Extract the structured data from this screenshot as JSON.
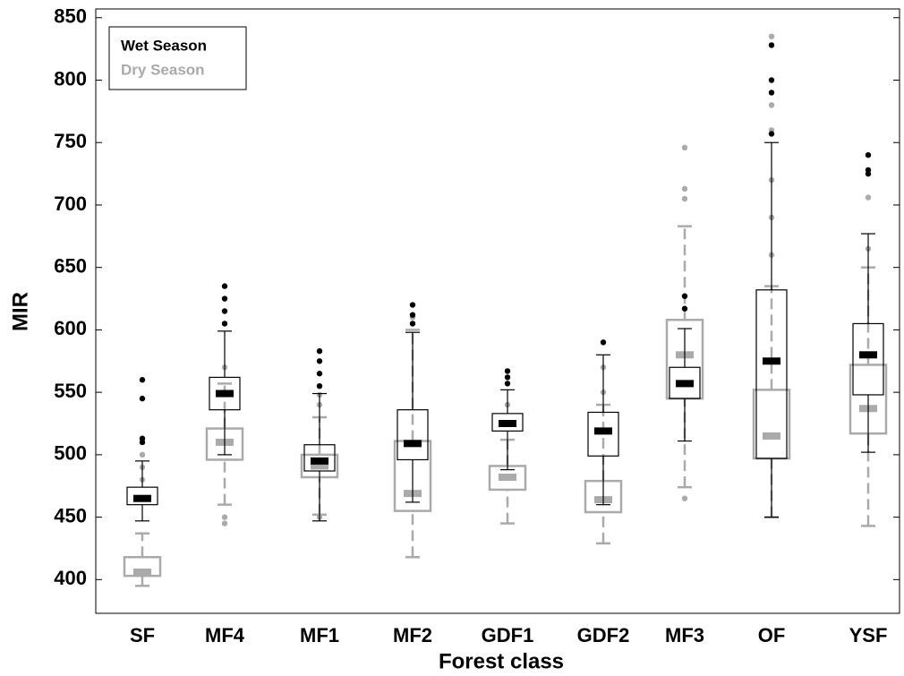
{
  "chart_data": {
    "type": "box",
    "xlabel": "Forest class",
    "ylabel": "MIR",
    "categories": [
      "SF",
      "MF4",
      "MF1",
      "MF2",
      "GDF1",
      "GDF2",
      "MF3",
      "OF",
      "YSF"
    ],
    "ylim": [
      373,
      857
    ],
    "yticks": [
      400,
      450,
      500,
      550,
      600,
      650,
      700,
      750,
      800,
      850
    ],
    "legend": "upper left",
    "series": [
      {
        "name": "Wet Season",
        "color": "#000000",
        "values": [
          {
            "low": 447,
            "q1": 460,
            "median": 465,
            "q3": 474,
            "high": 495,
            "outliers": [
              510,
              513,
              545,
              560
            ]
          },
          {
            "low": 500,
            "q1": 536,
            "median": 549,
            "q3": 562,
            "high": 599,
            "outliers": [
              605,
              615,
              625,
              635
            ]
          },
          {
            "low": 447,
            "q1": 487,
            "median": 495,
            "q3": 508,
            "high": 549,
            "outliers": [
              555,
              565,
              575,
              583
            ]
          },
          {
            "low": 462,
            "q1": 496,
            "median": 509,
            "q3": 536,
            "high": 598,
            "outliers": [
              605,
              612,
              620
            ]
          },
          {
            "low": 488,
            "q1": 519,
            "median": 525,
            "q3": 533,
            "high": 552,
            "outliers": [
              557,
              562,
              567
            ]
          },
          {
            "low": 460,
            "q1": 499,
            "median": 519,
            "q3": 534,
            "high": 580,
            "outliers": [
              590
            ]
          },
          {
            "low": 511,
            "q1": 545,
            "median": 557,
            "q3": 570,
            "high": 601,
            "outliers": [
              617,
              627
            ]
          },
          {
            "low": 450,
            "q1": 497,
            "median": 575,
            "q3": 632,
            "high": 750,
            "outliers": [
              757,
              790,
              800,
              828
            ]
          },
          {
            "low": 502,
            "q1": 548,
            "median": 580,
            "q3": 605,
            "high": 677,
            "outliers": [
              725,
              728,
              740
            ]
          }
        ]
      },
      {
        "name": "Dry Season",
        "color": "#aaaaaa",
        "values": [
          {
            "low": 395,
            "q1": 403,
            "median": 406,
            "q3": 418,
            "high": 437,
            "outliers": [
              480,
              490,
              500
            ]
          },
          {
            "low": 460,
            "q1": 496,
            "median": 510,
            "q3": 521,
            "high": 557,
            "outliers": [
              445,
              450,
              570
            ]
          },
          {
            "low": 452,
            "q1": 482,
            "median": 491,
            "q3": 500,
            "high": 530,
            "outliers": [
              450,
              540,
              548
            ]
          },
          {
            "low": 418,
            "q1": 455,
            "median": 469,
            "q3": 511,
            "high": 600,
            "outliers": [
              610
            ]
          },
          {
            "low": 445,
            "q1": 472,
            "median": 482,
            "q3": 491,
            "high": 512,
            "outliers": [
              540
            ]
          },
          {
            "low": 429,
            "q1": 454,
            "median": 464,
            "q3": 479,
            "high": 540,
            "outliers": [
              550,
              570
            ]
          },
          {
            "low": 474,
            "q1": 545,
            "median": 580,
            "q3": 608,
            "high": 683,
            "outliers": [
              465,
              705,
              713,
              746
            ]
          },
          {
            "low": 450,
            "q1": 497,
            "median": 515,
            "q3": 552,
            "high": 635,
            "outliers": [
              660,
              690,
              720,
              760,
              780,
              835
            ]
          },
          {
            "low": 443,
            "q1": 517,
            "median": 537,
            "q3": 572,
            "high": 650,
            "outliers": [
              665,
              706
            ]
          }
        ]
      }
    ]
  }
}
